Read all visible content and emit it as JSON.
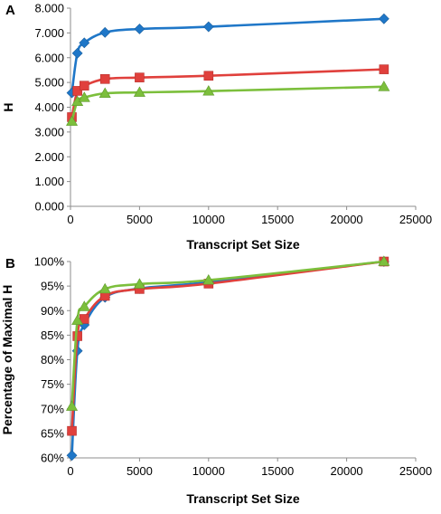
{
  "chart_data": [
    {
      "type": "line",
      "panel_label": "A",
      "xlabel": "Transcript Set Size",
      "ylabel": "H",
      "xlim": [
        0,
        25000
      ],
      "ylim": [
        0,
        8
      ],
      "xticks": [
        0,
        5000,
        10000,
        15000,
        20000,
        25000
      ],
      "yticks": [
        "0.000",
        "1.000",
        "2.000",
        "3.000",
        "4.000",
        "5.000",
        "6.000",
        "7.000",
        "8.000"
      ],
      "grid": false,
      "series": [
        {
          "color": "#1f77c8",
          "marker": "diamond",
          "x": [
            100,
            500,
            1000,
            2500,
            5000,
            10000,
            22700
          ],
          "y": [
            4.58,
            6.18,
            6.6,
            7.02,
            7.16,
            7.25,
            7.57
          ]
        },
        {
          "color": "#e0403c",
          "marker": "square",
          "x": [
            100,
            500,
            1000,
            2500,
            5000,
            10000,
            22700
          ],
          "y": [
            3.6,
            4.66,
            4.87,
            5.14,
            5.2,
            5.27,
            5.53
          ]
        },
        {
          "color": "#7cbf3c",
          "marker": "triangle",
          "x": [
            100,
            500,
            1000,
            2500,
            5000,
            10000,
            22700
          ],
          "y": [
            3.43,
            4.23,
            4.39,
            4.56,
            4.6,
            4.65,
            4.83
          ]
        }
      ]
    },
    {
      "type": "line",
      "panel_label": "B",
      "xlabel": "Transcript Set Size",
      "ylabel": "Percentage of Maximal H",
      "xlim": [
        0,
        25000
      ],
      "ylim": [
        60,
        100
      ],
      "xticks": [
        0,
        5000,
        10000,
        15000,
        20000,
        25000
      ],
      "yticks": [
        "60%",
        "65%",
        "70%",
        "75%",
        "80%",
        "85%",
        "90%",
        "95%",
        "100%"
      ],
      "grid": false,
      "series": [
        {
          "color": "#1f77c8",
          "marker": "diamond",
          "x": [
            100,
            500,
            1000,
            2500,
            5000,
            10000,
            22700
          ],
          "y": [
            60.5,
            81.8,
            87.1,
            92.7,
            94.5,
            95.8,
            100
          ]
        },
        {
          "color": "#e0403c",
          "marker": "square",
          "x": [
            100,
            500,
            1000,
            2500,
            5000,
            10000,
            22700
          ],
          "y": [
            65.5,
            84.8,
            88.3,
            93.0,
            94.4,
            95.5,
            100
          ]
        },
        {
          "color": "#7cbf3c",
          "marker": "triangle",
          "x": [
            100,
            500,
            1000,
            2500,
            5000,
            10000,
            22700
          ],
          "y": [
            70.5,
            88.0,
            90.8,
            94.4,
            95.4,
            96.2,
            100
          ]
        }
      ]
    }
  ]
}
